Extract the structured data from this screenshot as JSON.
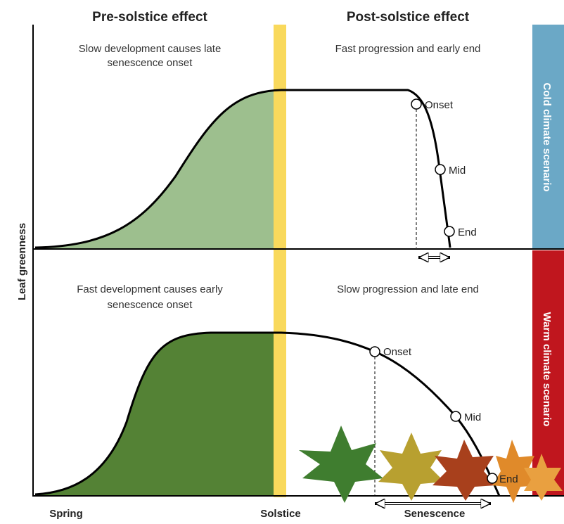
{
  "headers": {
    "left": "Pre-solstice effect",
    "right": "Post-solstice effect"
  },
  "y_axis_label": "Leaf greenness",
  "panels": [
    {
      "scenario": "Cold climate scenario",
      "left_note": [
        "Slow development causes late",
        "senescence onset"
      ],
      "right_note": [
        "Fast progression and early end"
      ],
      "points": [
        "Onset",
        "Mid",
        "End"
      ]
    },
    {
      "scenario": "Warm climate scenario",
      "left_note": [
        "Fast development causes early",
        "senescence onset"
      ],
      "right_note": [
        "Slow progression and late end"
      ],
      "points": [
        "Onset",
        "Mid",
        "End"
      ]
    }
  ],
  "x_labels": {
    "spring": "Spring",
    "solstice": "Solstice",
    "senescence": "Senescence"
  }
}
